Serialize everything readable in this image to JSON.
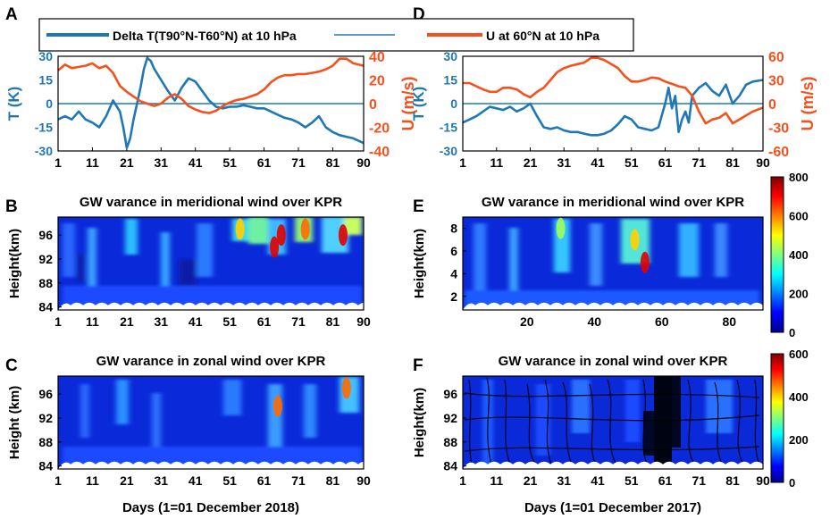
{
  "legend": {
    "delta_label": "Delta T(T90°N-T60°N) at 10 hPa",
    "u_label": "U at 60°N at 10 hPa"
  },
  "colors": {
    "blue": "#1f78b4",
    "orange": "#f4511e"
  },
  "chart_data": [
    {
      "panel": "A",
      "type": "line",
      "title": "",
      "ylabel": "T (K)",
      "y2label": "U (m/s)",
      "xlim": [
        1,
        90
      ],
      "ylim": [
        -30,
        30
      ],
      "y2lim": [
        -40,
        40
      ],
      "xticks": [
        "1",
        "11",
        "21",
        "31",
        "41",
        "51",
        "61",
        "71",
        "81",
        "90"
      ],
      "yticks": [
        "30",
        "15",
        "0",
        "-15",
        "-30"
      ],
      "y2ticks": [
        "40",
        "20",
        "0",
        "-20",
        "-40"
      ],
      "series": [
        {
          "name": "Delta T(T90°N-T60°N) at 10 hPa",
          "axis": "left",
          "x": [
            1,
            3,
            5,
            7,
            9,
            11,
            13,
            15,
            17,
            19,
            20,
            21,
            22,
            23,
            24,
            25,
            26,
            27,
            28,
            29,
            31,
            33,
            35,
            37,
            39,
            41,
            43,
            45,
            47,
            49,
            51,
            53,
            55,
            57,
            59,
            61,
            63,
            65,
            67,
            69,
            71,
            73,
            75,
            77,
            79,
            81,
            83,
            85,
            87,
            90
          ],
          "y": [
            -10,
            -8,
            -10,
            -5,
            -10,
            -12,
            -15,
            -8,
            2,
            -5,
            -15,
            -28,
            -22,
            -10,
            0,
            10,
            22,
            29,
            27,
            22,
            15,
            8,
            2,
            10,
            16,
            14,
            8,
            2,
            -2,
            -3,
            -2,
            -2,
            -1,
            -2,
            -3,
            -3,
            -5,
            -7,
            -9,
            -10,
            -12,
            -15,
            -12,
            -8,
            -15,
            -18,
            -20,
            -21,
            -22,
            -25
          ]
        },
        {
          "name": "U at 60°N at 10 hPa",
          "axis": "right",
          "x": [
            1,
            3,
            5,
            7,
            9,
            11,
            13,
            15,
            17,
            19,
            21,
            23,
            25,
            27,
            29,
            31,
            33,
            35,
            37,
            39,
            41,
            43,
            45,
            47,
            49,
            51,
            53,
            55,
            57,
            59,
            61,
            63,
            65,
            67,
            69,
            71,
            73,
            75,
            77,
            79,
            81,
            83,
            85,
            87,
            90
          ],
          "y": [
            28,
            33,
            30,
            31,
            32,
            34,
            30,
            32,
            26,
            15,
            10,
            6,
            2,
            0,
            -2,
            0,
            5,
            8,
            4,
            -2,
            -5,
            -7,
            -8,
            -6,
            -2,
            1,
            3,
            4,
            6,
            8,
            12,
            18,
            22,
            24,
            24,
            25,
            25,
            26,
            27,
            29,
            32,
            38,
            38,
            34,
            32
          ]
        }
      ]
    },
    {
      "panel": "D",
      "type": "line",
      "title": "",
      "ylabel": "T (K)",
      "y2label": "U (m/s)",
      "xlim": [
        1,
        90
      ],
      "ylim": [
        -30,
        30
      ],
      "y2lim": [
        -60,
        60
      ],
      "xticks": [
        "1",
        "11",
        "21",
        "31",
        "41",
        "51",
        "61",
        "71",
        "81",
        "90"
      ],
      "yticks": [
        "30",
        "15",
        "0",
        "-15",
        "-30"
      ],
      "y2ticks": [
        "60",
        "30",
        "0",
        "-30",
        "-60"
      ],
      "series": [
        {
          "name": "Delta T(T90°N-T60°N) at 10 hPa",
          "axis": "left",
          "x": [
            1,
            3,
            5,
            7,
            9,
            11,
            13,
            15,
            17,
            19,
            21,
            23,
            25,
            27,
            29,
            31,
            33,
            35,
            37,
            39,
            41,
            43,
            45,
            47,
            49,
            51,
            53,
            55,
            57,
            59,
            61,
            62,
            63,
            64,
            65,
            66,
            67,
            68,
            69,
            71,
            73,
            75,
            77,
            79,
            81,
            83,
            85,
            87,
            90
          ],
          "y": [
            -12,
            -10,
            -8,
            -5,
            -2,
            -3,
            -4,
            -2,
            -5,
            -3,
            0,
            -8,
            -15,
            -16,
            -15,
            -17,
            -18,
            -18,
            -19,
            -20,
            -20,
            -19,
            -17,
            -13,
            -8,
            -10,
            -15,
            -16,
            -17,
            -15,
            0,
            10,
            -3,
            5,
            -18,
            -10,
            -5,
            -12,
            5,
            10,
            13,
            8,
            5,
            12,
            0,
            5,
            12,
            14,
            15
          ]
        },
        {
          "name": "U at 60°N at 10 hPa",
          "axis": "right",
          "x": [
            1,
            3,
            5,
            7,
            9,
            11,
            13,
            15,
            17,
            19,
            21,
            23,
            25,
            27,
            29,
            31,
            33,
            35,
            37,
            39,
            41,
            43,
            45,
            47,
            49,
            51,
            53,
            55,
            57,
            59,
            61,
            63,
            65,
            67,
            69,
            71,
            73,
            75,
            77,
            79,
            81,
            83,
            85,
            87,
            90
          ],
          "y": [
            26,
            26,
            22,
            18,
            15,
            15,
            20,
            20,
            18,
            12,
            8,
            15,
            20,
            30,
            40,
            45,
            48,
            50,
            52,
            58,
            58,
            55,
            50,
            45,
            35,
            28,
            28,
            30,
            33,
            32,
            28,
            25,
            22,
            20,
            10,
            -10,
            -25,
            -20,
            -18,
            -12,
            -25,
            -20,
            -15,
            -10,
            -5
          ]
        }
      ]
    },
    {
      "panel": "B",
      "type": "heatmap",
      "title": "GW varance in meridional wind over KPR",
      "ylabel": "Height(km)",
      "xlim": [
        1,
        90
      ],
      "ylim": [
        83.5,
        99
      ],
      "xticks": [
        "1",
        "11",
        "21",
        "31",
        "41",
        "51",
        "61",
        "71",
        "81",
        "90"
      ],
      "yticks": [
        "96",
        "92",
        "88",
        "84"
      ],
      "colorbar": "E",
      "vmin": 0,
      "vmax": 800,
      "hotspots": [
        {
          "day": 54,
          "km": 97,
          "value": 550
        },
        {
          "day": 64,
          "km": 94,
          "value": 700
        },
        {
          "day": 66,
          "km": 96,
          "value": 800
        },
        {
          "day": 73,
          "km": 97,
          "value": 650
        },
        {
          "day": 84,
          "km": 96,
          "value": 700
        }
      ]
    },
    {
      "panel": "E",
      "type": "heatmap",
      "title": "GW varance in meridional wind over KPR",
      "ylabel": "Height(km)",
      "xlim": [
        1,
        90
      ],
      "ylim": [
        0.8,
        9
      ],
      "xticks": [
        "20",
        "40",
        "60",
        "80"
      ],
      "yticks": [
        "8",
        "6",
        "4",
        "2"
      ],
      "colorbar": {
        "ticks": [
          "800",
          "600",
          "400",
          "200",
          "0"
        ],
        "vmin": 0,
        "vmax": 800
      },
      "hotspots": [
        {
          "day": 55,
          "km": 5,
          "value": 800
        },
        {
          "day": 52,
          "km": 7,
          "value": 500
        },
        {
          "day": 30,
          "km": 8,
          "value": 350
        }
      ]
    },
    {
      "panel": "C",
      "type": "heatmap",
      "title": "GW varance in zonal wind over KPR",
      "ylabel": "Height (km)",
      "xlabel": "Days (1=01 December 2018)",
      "xlim": [
        1,
        90
      ],
      "ylim": [
        83.5,
        99
      ],
      "xticks": [
        "1",
        "11",
        "21",
        "31",
        "41",
        "51",
        "61",
        "71",
        "81",
        "90"
      ],
      "yticks": [
        "96",
        "92",
        "88",
        "84"
      ],
      "colorbar": "F",
      "vmin": 0,
      "vmax": 600,
      "hotspots": [
        {
          "day": 65,
          "km": 94,
          "value": 500
        },
        {
          "day": 85,
          "km": 97,
          "value": 450
        }
      ]
    },
    {
      "panel": "F",
      "type": "heatmap",
      "title": "GW varance in zonal wind over KPR",
      "ylabel": "Height(km)",
      "xlabel": "Days (1=01 December 2017)",
      "xlim": [
        1,
        90
      ],
      "ylim": [
        83.5,
        99
      ],
      "xticks": [
        "1",
        "11",
        "21",
        "31",
        "41",
        "51",
        "61",
        "71",
        "81",
        "90"
      ],
      "yticks": [
        "96",
        "92",
        "88",
        "84"
      ],
      "colorbar": {
        "ticks": [
          "600",
          "400",
          "200",
          "0"
        ],
        "vmin": 0,
        "vmax": 600
      },
      "contours": "black contour lines, dense near day 61-70",
      "hotspots": []
    }
  ]
}
